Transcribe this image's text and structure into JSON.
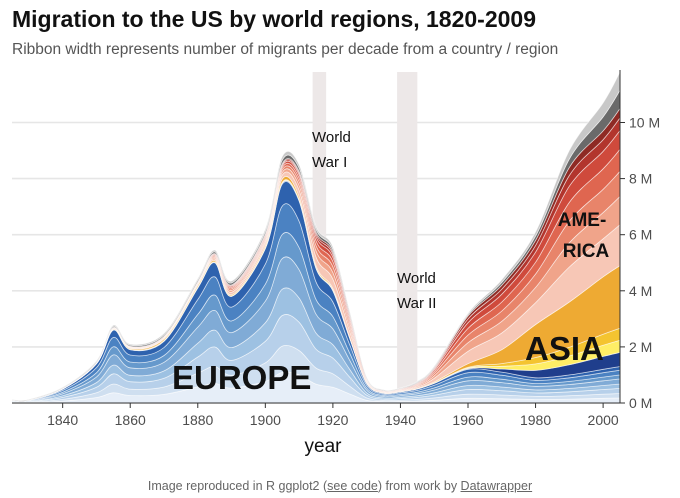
{
  "header": {
    "title": "Migration to the US by world regions, 1820-2009",
    "subtitle": "Ribbon width represents number of migrants per decade from a country / region"
  },
  "caption": {
    "prefix": "Image reproduced in R ggplot2 (",
    "link1": "see code",
    "middle": ") from work by ",
    "link2": "Datawrapper"
  },
  "colors": {
    "europe": [
      "#e6eef8",
      "#cfdff0",
      "#b7d0ea",
      "#9dc1e2",
      "#80abd6",
      "#6699cc",
      "#4b82c2",
      "#2e62ae"
    ],
    "asia": [
      "#1f3e8c",
      "#ffee66",
      "#f4c430",
      "#eeaa33"
    ],
    "america": [
      "#f7c7b6",
      "#f0a48a",
      "#e8846a",
      "#df6650",
      "#cf4a3c",
      "#b2352d",
      "#8e2a24"
    ],
    "other": [
      "#6a6a6a",
      "#c8c8c8"
    ]
  },
  "chart_data": {
    "type": "area",
    "stacked": true,
    "streamgraph": true,
    "xlabel": "year",
    "ylabel": "",
    "xlim": [
      1825,
      2005
    ],
    "ylim": [
      0,
      11.8
    ],
    "y_unit": "M",
    "x_ticks": [
      1840,
      1860,
      1880,
      1900,
      1920,
      1940,
      1960,
      1980,
      2000
    ],
    "y_ticks": [
      0,
      2,
      4,
      6,
      8,
      10
    ],
    "y_tick_labels": [
      "0 M",
      "2 M",
      "4 M",
      "6 M",
      "8 M",
      "10 M"
    ],
    "y_axis_position": "right",
    "grid": true,
    "x": [
      1825,
      1830,
      1840,
      1850,
      1855,
      1860,
      1870,
      1880,
      1885,
      1890,
      1900,
      1905,
      1910,
      1915,
      1920,
      1925,
      1930,
      1935,
      1940,
      1945,
      1950,
      1960,
      1970,
      1980,
      1990,
      2000,
      2005
    ],
    "region_totals": [
      {
        "name": "EUROPE",
        "values": [
          0.1,
          0.1,
          0.5,
          1.4,
          2.6,
          1.9,
          2.2,
          4.1,
          5.0,
          3.8,
          5.5,
          7.8,
          7.2,
          4.8,
          4.0,
          2.3,
          0.7,
          0.35,
          0.4,
          0.5,
          0.7,
          1.2,
          1.1,
          0.9,
          1.0,
          1.2,
          1.3
        ]
      },
      {
        "name": "ASIA",
        "values": [
          0,
          0,
          0,
          0,
          0.03,
          0.05,
          0.08,
          0.1,
          0.08,
          0.06,
          0.12,
          0.18,
          0.16,
          0.1,
          0.08,
          0.04,
          0.02,
          0.01,
          0.01,
          0.02,
          0.05,
          0.2,
          0.8,
          1.9,
          2.6,
          3.3,
          3.6
        ]
      },
      {
        "name": "AMERICA",
        "values": [
          0,
          0,
          0.02,
          0.04,
          0.06,
          0.07,
          0.1,
          0.12,
          0.25,
          0.35,
          0.4,
          0.55,
          0.9,
          1.2,
          1.3,
          0.8,
          0.15,
          0.08,
          0.1,
          0.2,
          0.5,
          1.7,
          2.3,
          3.0,
          4.8,
          5.2,
          5.6
        ]
      },
      {
        "name": "",
        "values": [
          0.02,
          0.03,
          0.04,
          0.06,
          0.08,
          0.08,
          0.1,
          0.12,
          0.12,
          0.14,
          0.18,
          0.25,
          0.24,
          0.2,
          0.18,
          0.12,
          0.05,
          0.03,
          0.03,
          0.05,
          0.06,
          0.1,
          0.2,
          0.3,
          0.6,
          1.0,
          1.3
        ]
      }
    ],
    "annotations": [
      {
        "text": "World",
        "text2": "War I",
        "x": 1917
      },
      {
        "text": "World",
        "text2": "War II",
        "x": 1942
      },
      {
        "text": "EUROPE",
        "x": 1894,
        "y": 0.9
      },
      {
        "text": "ASIA",
        "x": 1992,
        "y": 2.0
      },
      {
        "text": "AME-",
        "text2": "RICA",
        "x": 1992,
        "y": 6.0
      }
    ],
    "shaded_periods": [
      [
        1914,
        1918
      ],
      [
        1939,
        1945
      ]
    ]
  }
}
